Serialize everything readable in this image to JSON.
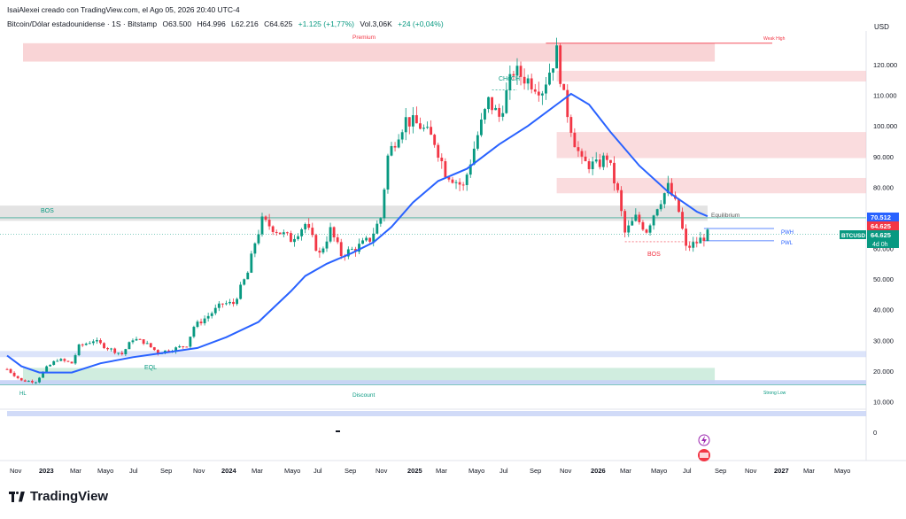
{
  "header": {
    "text": "IsaiAlexei creado con TradingView.com, el Ago 05, 2026 20:40 UTC-4"
  },
  "legend": {
    "symbol": "Bitcoin/Dólar estadounidense · 1S · Bitstamp",
    "open": "O63.500",
    "high": "H64.996",
    "low": "L62.216",
    "close": "C64.625",
    "change": "+1.125 (+1,77%)",
    "volume": "Vol.3,06K",
    "vol_change": "+24 (+0,04%)"
  },
  "currency": "USD",
  "brand": "TradingView",
  "colors": {
    "up": "#089981",
    "down": "#f23645",
    "ma": "#2962ff",
    "premium_zone": "#f7c5c8",
    "discount_zone": "#c8ead9",
    "blue_zone": "#c5d2f6",
    "equilibrium_zone": "#d9d9d9",
    "price_badge": "#089981",
    "ma_badge": "#2962ff"
  },
  "annotations": {
    "premium": "Premium",
    "discount": "Discount",
    "equilibrium": "Equilibrium",
    "bos_left": "BOS",
    "bos_right": "BOS",
    "eql": "EQL",
    "hl": "HL",
    "choch": "CHoCH",
    "weak_high": "Weak High",
    "strong_low": "Strong Low",
    "pwh": "PWH",
    "pwl": "PWL"
  },
  "price_badges": {
    "ma_value": "70.512",
    "last_price": "64.625",
    "symbol_tag": "BTCUSD",
    "close_value": "64.625",
    "countdown": "4d 0h"
  },
  "chart_data": {
    "type": "candlestick",
    "title": "",
    "y_unit": "USD (thousands)",
    "ylim": [
      0,
      132
    ],
    "y_ticks": [
      "120.000",
      "110.000",
      "100.000",
      "90.000",
      "80.000",
      "70.000",
      "60.000",
      "50.000",
      "40.000",
      "30.000",
      "20.000",
      "10.000",
      "0"
    ],
    "x_ticks": [
      "Nov",
      "2023",
      "Mar",
      "Mayo",
      "Jul",
      "Sep",
      "Nov",
      "2024",
      "Mar",
      "Mayo",
      "Jul",
      "Sep",
      "Nov",
      "2025",
      "Mar",
      "Mayo",
      "Jul",
      "Sep",
      "Nov",
      "2026",
      "Mar",
      "Mayo",
      "Jul",
      "Sep",
      "Nov",
      "2027",
      "Mar",
      "Mayo"
    ],
    "x_start": "2022-10-31",
    "x_end": "2027-06-01",
    "series": [
      {
        "name": "BTCUSD",
        "kind": "candles",
        "close_path": [
          [
            "2022-10-31",
            20.6
          ],
          [
            "2022-11-28",
            16.8
          ],
          [
            "2022-12-26",
            16.6
          ],
          [
            "2023-01-16",
            21.0
          ],
          [
            "2023-02-06",
            23.8
          ],
          [
            "2023-03-06",
            22.5
          ],
          [
            "2023-03-20",
            28.0
          ],
          [
            "2023-04-17",
            30.0
          ],
          [
            "2023-05-15",
            27.5
          ],
          [
            "2023-06-12",
            25.5
          ],
          [
            "2023-07-03",
            30.5
          ],
          [
            "2023-07-24",
            29.5
          ],
          [
            "2023-08-21",
            26.0
          ],
          [
            "2023-09-18",
            27.0
          ],
          [
            "2023-10-16",
            28.5
          ],
          [
            "2023-10-30",
            34.5
          ],
          [
            "2023-11-27",
            38.0
          ],
          [
            "2023-12-25",
            42.0
          ],
          [
            "2024-01-15",
            42.0
          ],
          [
            "2024-02-12",
            52.0
          ],
          [
            "2024-02-26",
            62.0
          ],
          [
            "2024-03-11",
            69.0
          ],
          [
            "2024-04-08",
            66.0
          ],
          [
            "2024-05-06",
            63.0
          ],
          [
            "2024-06-03",
            68.0
          ],
          [
            "2024-07-01",
            58.0
          ],
          [
            "2024-07-22",
            66.0
          ],
          [
            "2024-08-12",
            58.0
          ],
          [
            "2024-09-09",
            60.0
          ],
          [
            "2024-10-07",
            63.0
          ],
          [
            "2024-10-28",
            70.0
          ],
          [
            "2024-11-11",
            90.0
          ],
          [
            "2024-12-02",
            98.0
          ],
          [
            "2024-12-16",
            102.0
          ],
          [
            "2025-01-13",
            100.0
          ],
          [
            "2025-02-10",
            95.0
          ],
          [
            "2025-03-03",
            85.0
          ],
          [
            "2025-04-07",
            80.0
          ],
          [
            "2025-05-05",
            97.0
          ],
          [
            "2025-05-26",
            108.0
          ],
          [
            "2025-06-16",
            103.0
          ],
          [
            "2025-07-14",
            118.0
          ],
          [
            "2025-08-11",
            115.0
          ],
          [
            "2025-09-08",
            112.0
          ],
          [
            "2025-10-06",
            124.0
          ],
          [
            "2025-10-20",
            109.0
          ],
          [
            "2025-11-10",
            95.0
          ],
          [
            "2025-11-24",
            88.0
          ],
          [
            "2025-12-22",
            87.0
          ],
          [
            "2026-01-12",
            90.0
          ],
          [
            "2026-02-02",
            78.0
          ],
          [
            "2026-02-16",
            65.0
          ],
          [
            "2026-03-09",
            70.0
          ],
          [
            "2026-03-30",
            66.0
          ],
          [
            "2026-04-20",
            74.0
          ],
          [
            "2026-05-11",
            80.0
          ],
          [
            "2026-06-01",
            72.0
          ],
          [
            "2026-06-15",
            60.0
          ],
          [
            "2026-07-06",
            62.0
          ],
          [
            "2026-07-27",
            64.6
          ]
        ]
      },
      {
        "name": "MA",
        "kind": "line",
        "points": [
          [
            "2022-10-31",
            25.0
          ],
          [
            "2022-11-28",
            21.5
          ],
          [
            "2023-01-02",
            19.5
          ],
          [
            "2023-03-06",
            19.5
          ],
          [
            "2023-05-01",
            22.5
          ],
          [
            "2023-07-03",
            24.5
          ],
          [
            "2023-09-04",
            26.0
          ],
          [
            "2023-11-06",
            27.5
          ],
          [
            "2024-01-01",
            31.0
          ],
          [
            "2024-03-04",
            36.0
          ],
          [
            "2024-05-06",
            46.0
          ],
          [
            "2024-06-03",
            51.0
          ],
          [
            "2024-07-15",
            55.0
          ],
          [
            "2024-09-02",
            58.5
          ],
          [
            "2024-10-14",
            62.0
          ],
          [
            "2024-11-18",
            67.0
          ],
          [
            "2024-12-30",
            75.0
          ],
          [
            "2025-02-17",
            82.0
          ],
          [
            "2025-04-14",
            86.0
          ],
          [
            "2025-06-16",
            94.0
          ],
          [
            "2025-08-11",
            100.0
          ],
          [
            "2025-10-06",
            107.0
          ],
          [
            "2025-11-03",
            110.5
          ],
          [
            "2025-12-08",
            107.0
          ],
          [
            "2026-01-19",
            98.0
          ],
          [
            "2026-03-16",
            87.0
          ],
          [
            "2026-05-11",
            78.5
          ],
          [
            "2026-07-06",
            72.0
          ],
          [
            "2026-07-27",
            70.5
          ]
        ]
      }
    ],
    "levels": {
      "premium_zone": [
        121,
        127
      ],
      "weak_high": 127,
      "bos_upper": [
        69,
        74
      ],
      "equilibrium": [
        69,
        74
      ],
      "pwh": 66.5,
      "pwl": 62.5,
      "last_price": 64.625,
      "discount_zone": [
        16,
        21
      ],
      "blue_zone": [
        15.5,
        17
      ],
      "blue_zone_2": [
        24.5,
        26.5
      ],
      "strong_low": 15.5,
      "red_zones": [
        [
          114.5,
          118
        ],
        [
          89.5,
          98
        ],
        [
          78,
          83
        ]
      ]
    }
  }
}
